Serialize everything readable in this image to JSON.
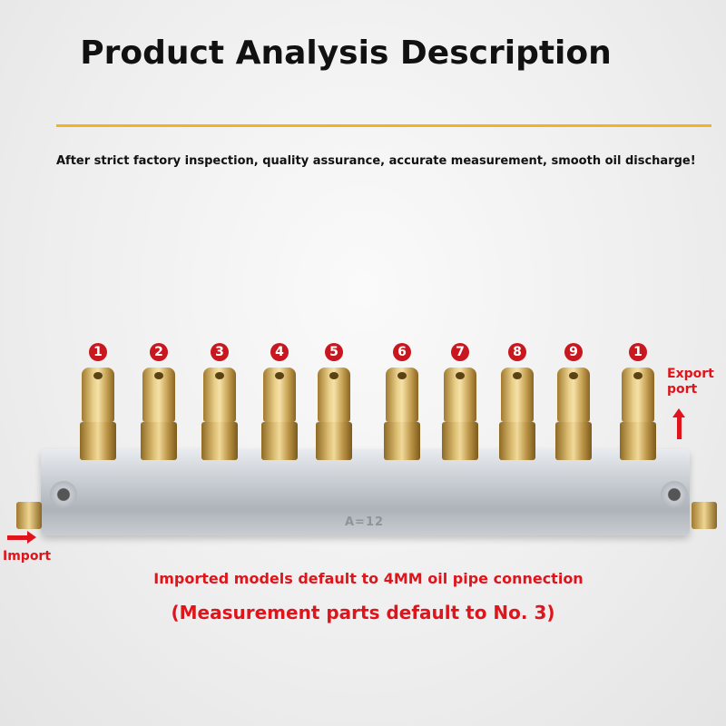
{
  "title": "Product Analysis Description",
  "subtitle": "After strict factory inspection, quality assurance, accurate measurement, smooth oil discharge!",
  "accent_color": "#f0b41c",
  "label_color": "#e0141b",
  "outlet_numbers": [
    "1",
    "2",
    "3",
    "4",
    "5",
    "6",
    "7",
    "8",
    "9",
    "1"
  ],
  "manifold_stamp": "A=12",
  "labels": {
    "export_port": "Export port",
    "import": "Import"
  },
  "notes": {
    "pipe": "Imported models default to 4MM oil pipe connection",
    "measurement": "(Measurement parts default to No. 3)"
  }
}
